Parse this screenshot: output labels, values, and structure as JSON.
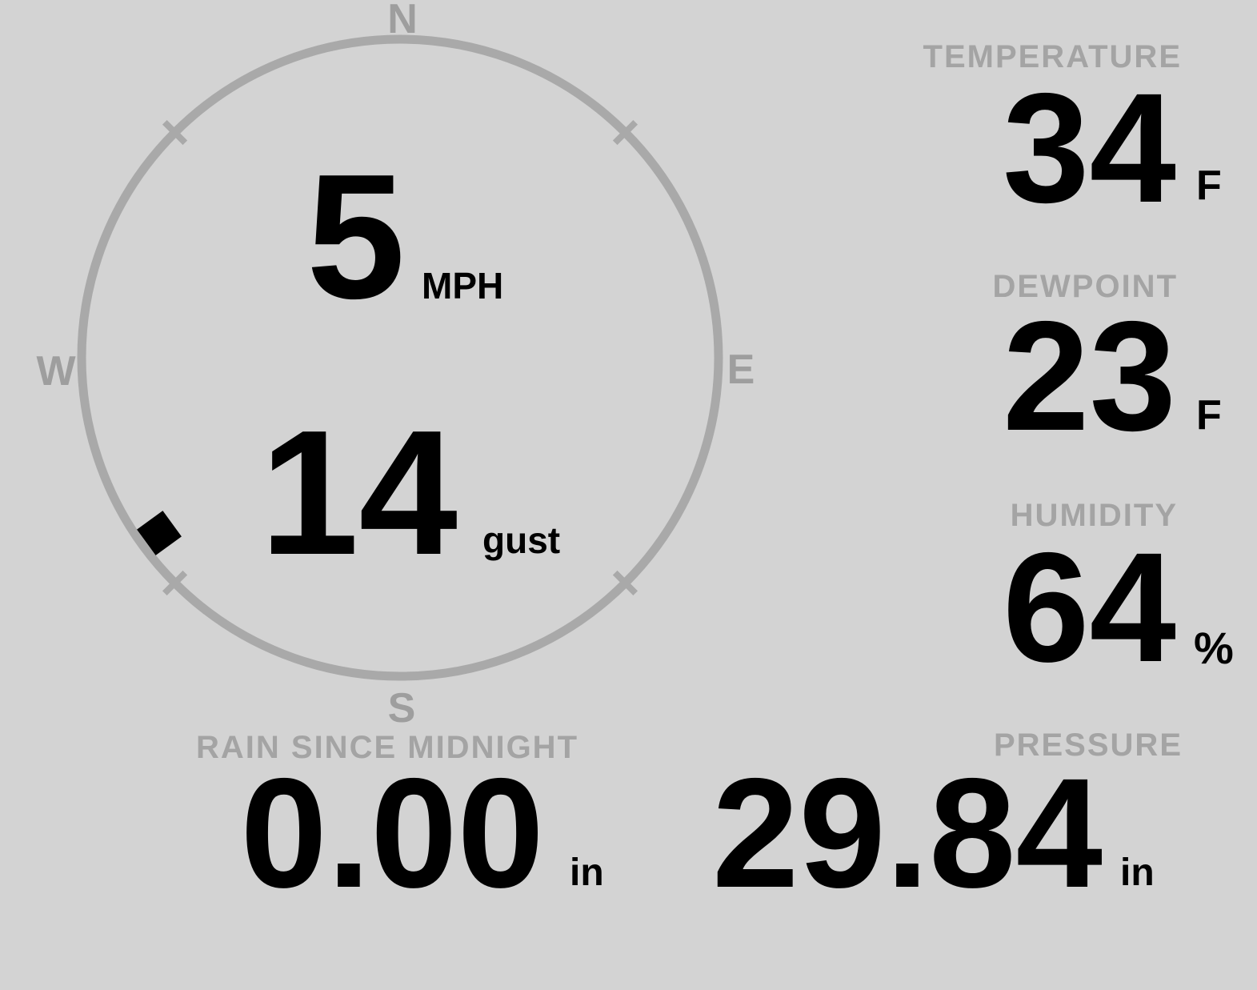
{
  "wind": {
    "speed": "5",
    "speed_unit": "MPH",
    "gust": "14",
    "gust_unit": "gust",
    "direction_deg": 234,
    "compass": {
      "north": "N",
      "east": "E",
      "south": "S",
      "west": "W"
    }
  },
  "metrics": {
    "temperature": {
      "label": "TEMPERATURE",
      "value": "34",
      "unit": "F"
    },
    "dewpoint": {
      "label": "DEWPOINT",
      "value": "23",
      "unit": "F"
    },
    "humidity": {
      "label": "HUMIDITY",
      "value": "64",
      "unit": "%"
    },
    "rain": {
      "label": "RAIN SINCE MIDNIGHT",
      "value": "0.00",
      "unit": "in"
    },
    "pressure": {
      "label": "PRESSURE",
      "value": "29.84",
      "unit": "in"
    }
  },
  "colors": {
    "background": "#d3d3d3",
    "ring": "#a9a9a9",
    "ring_text": "#9e9e9e",
    "muted": "#a4a4a4",
    "ink": "#000000"
  }
}
